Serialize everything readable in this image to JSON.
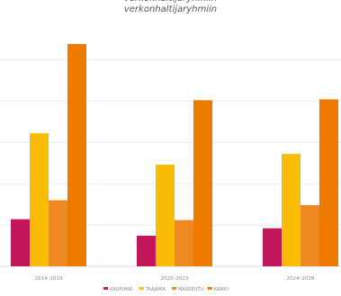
{
  "chart_data": {
    "type": "bar",
    "title": "verkonhaltijaryhmiin",
    "title_top_partial": "verkonhaltijaryhmiin",
    "categories": [
      "2014–2019",
      "2020–2023",
      "2024–2028"
    ],
    "series": [
      {
        "name": "KAUPUNKI",
        "color": "#c2185b",
        "values": [
          57,
          37,
          46
        ]
      },
      {
        "name": "TAAJAMA",
        "color": "#fbbc05",
        "values": [
          161,
          123,
          136
        ]
      },
      {
        "name": "MAASEUTU",
        "color": "#ef8a22",
        "values": [
          80,
          56,
          74
        ]
      },
      {
        "name": "KAIKKI",
        "color": "#ef7a00",
        "values": [
          269,
          201,
          202
        ]
      }
    ],
    "ylim": [
      0,
      270
    ],
    "grid": true,
    "legend_position": "bottom-center",
    "xlabel": "",
    "ylabel": ""
  }
}
